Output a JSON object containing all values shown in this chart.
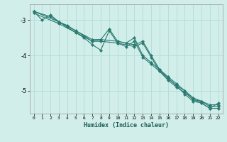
{
  "xlabel": "Humidex (Indice chaleur)",
  "bg_color": "#d1eeea",
  "line_color": "#2a7a70",
  "grid_color": "#b0ddd8",
  "lines": [
    {
      "x": [
        0,
        1,
        2,
        3,
        4,
        5,
        6,
        7,
        8,
        9,
        10,
        11,
        12,
        13,
        14,
        15,
        16,
        17,
        18,
        19,
        20,
        21,
        22
      ],
      "y": [
        -2.75,
        -3.0,
        -2.85,
        -3.05,
        -3.15,
        -3.3,
        -3.45,
        -3.6,
        -3.55,
        -3.25,
        -3.6,
        -3.65,
        -3.5,
        -4.0,
        -4.2,
        -4.4,
        -4.6,
        -4.8,
        -5.0,
        -5.25,
        -5.3,
        -5.4,
        -5.4
      ]
    },
    {
      "x": [
        0,
        2,
        3,
        4,
        5,
        6,
        7,
        8,
        9,
        10,
        11,
        12,
        13,
        14,
        15,
        16,
        17,
        18,
        19,
        20,
        21,
        22
      ],
      "y": [
        -2.75,
        -2.9,
        -3.05,
        -3.2,
        -3.35,
        -3.5,
        -3.7,
        -3.85,
        -3.3,
        -3.65,
        -3.75,
        -3.6,
        -4.05,
        -4.25,
        -4.45,
        -4.65,
        -4.85,
        -5.1,
        -5.3,
        -5.35,
        -5.5,
        -5.35
      ]
    },
    {
      "x": [
        0,
        3,
        7,
        8,
        10,
        12,
        13,
        14,
        15,
        16,
        17,
        18,
        19,
        20,
        21,
        22
      ],
      "y": [
        -2.75,
        -3.05,
        -3.55,
        -3.55,
        -3.6,
        -3.7,
        -3.6,
        -4.0,
        -4.4,
        -4.65,
        -4.85,
        -5.0,
        -5.2,
        -5.3,
        -5.45,
        -5.45
      ]
    },
    {
      "x": [
        0,
        3,
        7,
        8,
        10,
        12,
        13,
        14,
        15,
        16,
        17,
        18,
        19,
        20,
        21,
        22
      ],
      "y": [
        -2.8,
        -3.1,
        -3.6,
        -3.6,
        -3.65,
        -3.75,
        -3.65,
        -4.05,
        -4.45,
        -4.7,
        -4.9,
        -5.05,
        -5.25,
        -5.35,
        -5.5,
        -5.5
      ]
    }
  ],
  "ylim": [
    -5.65,
    -2.55
  ],
  "xlim": [
    -0.5,
    22.5
  ],
  "yticks": [
    -5,
    -4,
    -3
  ],
  "xticks": [
    0,
    1,
    2,
    3,
    4,
    5,
    6,
    7,
    8,
    9,
    10,
    11,
    12,
    13,
    14,
    15,
    16,
    17,
    18,
    19,
    20,
    21,
    22
  ],
  "xtick_labels": [
    "0",
    "1",
    "2",
    "3",
    "4",
    "5",
    "6",
    "7",
    "8",
    "9",
    "10",
    "11",
    "12",
    "13",
    "14",
    "15",
    "16",
    "17",
    "18",
    "19",
    "20",
    "21",
    "22"
  ]
}
